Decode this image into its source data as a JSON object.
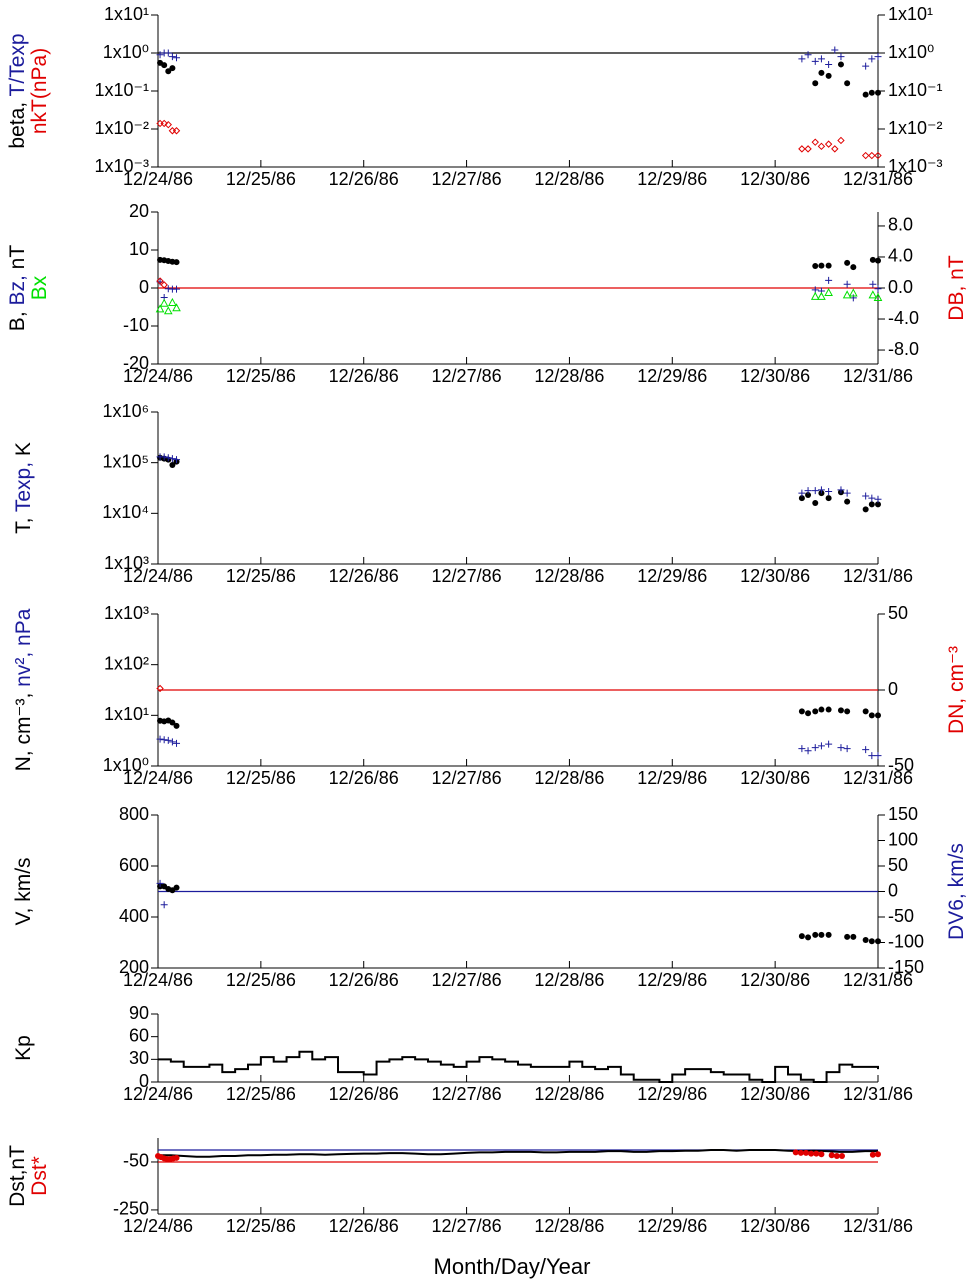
{
  "x_axis": {
    "xlim": [
      0,
      7
    ],
    "xticks": [
      {
        "value": 0,
        "label": "12/24/86"
      },
      {
        "value": 1,
        "label": "12/25/86"
      },
      {
        "value": 2,
        "label": "12/26/86"
      },
      {
        "value": 3,
        "label": "12/27/86"
      },
      {
        "value": 4,
        "label": "12/28/86"
      },
      {
        "value": 5,
        "label": "12/29/86"
      },
      {
        "value": 6,
        "label": "12/30/86"
      },
      {
        "value": 7,
        "label": "12/31/86"
      }
    ],
    "label": "Month/Day/Year"
  },
  "chart_data": [
    {
      "type": "scatter",
      "ylog": true,
      "ylim": [
        0.001,
        10
      ],
      "yticks": [
        {
          "value": 10,
          "label": "1x10¹"
        },
        {
          "value": 1,
          "label": "1x10⁰"
        },
        {
          "value": 0.1,
          "label": "1x10⁻¹"
        },
        {
          "value": 0.01,
          "label": "1x10⁻²"
        },
        {
          "value": 0.001,
          "label": "1x10⁻³"
        }
      ],
      "y2log": true,
      "y2lim": [
        0.001,
        10
      ],
      "y2ticks": [
        {
          "value": 10,
          "label": "1x10¹"
        },
        {
          "value": 1,
          "label": "1x10⁰"
        },
        {
          "value": 0.1,
          "label": "1x10⁻¹"
        },
        {
          "value": 0.01,
          "label": "1x10⁻²"
        },
        {
          "value": 0.001,
          "label": "1x10⁻³"
        }
      ],
      "ylabel": [
        [
          {
            "text": "beta, ",
            "color": "#000000"
          },
          {
            "text": "T/Texp",
            "color": "#1c1c9c"
          }
        ],
        [
          {
            "text": "nkT(nPa)",
            "color": "#e00000"
          }
        ]
      ],
      "hlines": [
        {
          "value": 1,
          "color": "#000000"
        }
      ],
      "series": [
        {
          "marker": "plus",
          "color": "#1c1c9c",
          "x": [
            0.02,
            0.06,
            0.1,
            0.14,
            0.18,
            6.26,
            6.32,
            6.39,
            6.45,
            6.52,
            6.58,
            6.64,
            6.88,
            6.94,
            7.0
          ],
          "values": [
            0.9,
            1.0,
            1.0,
            0.8,
            0.75,
            0.7,
            0.9,
            0.6,
            0.7,
            0.5,
            1.2,
            0.8,
            0.45,
            0.7,
            0.8
          ]
        },
        {
          "marker": "dot",
          "color": "#000000",
          "x": [
            0.02,
            0.06,
            0.1,
            0.14,
            6.39,
            6.45,
            6.52,
            6.64,
            6.7,
            6.88,
            6.94,
            7.0
          ],
          "values": [
            0.55,
            0.48,
            0.33,
            0.4,
            0.16,
            0.3,
            0.25,
            0.5,
            0.16,
            0.08,
            0.09,
            0.09
          ]
        },
        {
          "marker": "diamond",
          "color": "#e00000",
          "x": [
            0.02,
            0.06,
            0.1,
            0.14,
            0.18,
            6.26,
            6.32,
            6.39,
            6.45,
            6.52,
            6.58,
            6.64,
            6.88,
            6.94,
            7.0
          ],
          "values": [
            0.014,
            0.014,
            0.013,
            0.009,
            0.009,
            0.003,
            0.003,
            0.0045,
            0.0035,
            0.004,
            0.003,
            0.005,
            0.002,
            0.002,
            0.002
          ]
        }
      ]
    },
    {
      "type": "scatter",
      "ylim": [
        -20,
        20
      ],
      "yticks": [
        20,
        10,
        0,
        -10,
        -20
      ],
      "y2lim": [
        -9.8,
        9.8
      ],
      "y2ticks": [
        {
          "value": 8,
          "label": "8.0"
        },
        {
          "value": 4,
          "label": "4.0"
        },
        {
          "value": 0,
          "label": "0.0"
        },
        {
          "value": -4,
          "label": "-4.0"
        },
        {
          "value": -8,
          "label": "-8.0"
        }
      ],
      "ylabel": [
        [
          {
            "text": "B, ",
            "color": "#000000"
          },
          {
            "text": "Bz, ",
            "color": "#1c1c9c"
          },
          {
            "text": "nT",
            "color": "#000000"
          }
        ],
        [
          {
            "text": "Bx",
            "color": "#00e000"
          }
        ]
      ],
      "y2label": [
        [
          {
            "text": "DB, nT",
            "color": "#e00000"
          }
        ]
      ],
      "hlines": [
        {
          "value": 0,
          "color": "#e00000",
          "axis": "y2"
        }
      ],
      "series": [
        {
          "marker": "dot",
          "color": "#000000",
          "x": [
            0.02,
            0.06,
            0.1,
            0.14,
            0.18,
            6.39,
            6.45,
            6.52,
            6.7,
            6.76,
            6.95,
            7.0
          ],
          "values": [
            7.4,
            7.3,
            7.1,
            6.9,
            6.8,
            5.8,
            5.9,
            5.9,
            6.6,
            5.5,
            7.4,
            7.2
          ]
        },
        {
          "marker": "plus",
          "color": "#1c1c9c",
          "x": [
            0.02,
            0.06,
            0.1,
            0.14,
            0.18,
            6.39,
            6.45,
            6.52,
            6.7,
            6.76,
            6.95,
            7.0
          ],
          "values": [
            1.6,
            -2.5,
            -0.2,
            -0.3,
            -0.3,
            -0.5,
            -0.8,
            2,
            1,
            -2.6,
            1,
            -0.2
          ]
        },
        {
          "marker": "triangle",
          "color": "#00e000",
          "x": [
            0.02,
            0.06,
            0.1,
            0.14,
            0.18,
            6.39,
            6.45,
            6.52,
            6.7,
            6.76,
            6.95,
            7.0
          ],
          "values": [
            -5.5,
            -4,
            -6,
            -3.8,
            -5.2,
            -2.2,
            -2.2,
            -1.2,
            -1.8,
            -1.3,
            -1.8,
            -2.5
          ]
        },
        {
          "marker": "diamond",
          "color": "#e00000",
          "axis": "y2",
          "x": [
            0.02,
            0.06
          ],
          "values": [
            0.9,
            0.4
          ]
        }
      ]
    },
    {
      "type": "scatter",
      "ylog": true,
      "ylim": [
        1000,
        1000000
      ],
      "yticks": [
        {
          "value": 1000000,
          "label": "1x10⁶"
        },
        {
          "value": 100000,
          "label": "1x10⁵"
        },
        {
          "value": 10000,
          "label": "1x10⁴"
        },
        {
          "value": 1000,
          "label": "1x10³"
        }
      ],
      "ylabel": [
        [
          {
            "text": "T, ",
            "color": "#000000"
          },
          {
            "text": "Texp,",
            "color": "#1c1c9c"
          },
          {
            "text": " K",
            "color": "#000000"
          }
        ]
      ],
      "series": [
        {
          "marker": "dot",
          "color": "#000000",
          "x": [
            0.02,
            0.06,
            0.1,
            0.14,
            0.18,
            6.26,
            6.32,
            6.39,
            6.45,
            6.52,
            6.64,
            6.7,
            6.88,
            6.94,
            7.0
          ],
          "values": [
            125000,
            120000,
            115000,
            90000,
            105000,
            20000,
            23000,
            16000,
            25000,
            20000,
            26000,
            17000,
            12000,
            15000,
            15000
          ]
        },
        {
          "marker": "plus",
          "color": "#1c1c9c",
          "x": [
            0.02,
            0.06,
            0.1,
            0.14,
            0.18,
            6.26,
            6.32,
            6.39,
            6.45,
            6.52,
            6.64,
            6.7,
            6.88,
            6.94,
            7.0
          ],
          "values": [
            130000,
            130000,
            125000,
            120000,
            115000,
            25000,
            28000,
            28000,
            29000,
            27000,
            29000,
            25000,
            22000,
            20000,
            19000
          ]
        }
      ]
    },
    {
      "type": "scatter",
      "ylog": true,
      "ylim": [
        1,
        1000
      ],
      "yticks": [
        {
          "value": 1000,
          "label": "1x10³"
        },
        {
          "value": 100,
          "label": "1x10²"
        },
        {
          "value": 10,
          "label": "1x10¹"
        },
        {
          "value": 1,
          "label": "1x10⁰"
        }
      ],
      "y2lim": [
        -50,
        50
      ],
      "y2ticks": [
        50,
        0,
        -50
      ],
      "ylabel": [
        [
          {
            "text": "N, cm⁻³, ",
            "color": "#000000"
          },
          {
            "text": "nv², nPa",
            "color": "#1c1c9c"
          }
        ]
      ],
      "y2label": [
        [
          {
            "text": "DN, cm⁻³",
            "color": "#e00000"
          }
        ]
      ],
      "hlines": [
        {
          "value": 0,
          "color": "#e00000",
          "axis": "y2"
        }
      ],
      "series": [
        {
          "marker": "dot",
          "color": "#000000",
          "x": [
            0.02,
            0.06,
            0.1,
            0.14,
            0.18,
            6.26,
            6.32,
            6.39,
            6.45,
            6.52,
            6.64,
            6.7,
            6.88,
            6.94,
            7.0
          ],
          "values": [
            7.8,
            7.6,
            7.9,
            7.2,
            6.2,
            12,
            11,
            12,
            13,
            13,
            12.5,
            12,
            12,
            10,
            10
          ]
        },
        {
          "marker": "plus",
          "color": "#1c1c9c",
          "x": [
            0.02,
            0.06,
            0.1,
            0.14,
            0.18,
            6.26,
            6.32,
            6.39,
            6.45,
            6.52,
            6.64,
            6.7,
            6.88,
            6.94,
            7.0
          ],
          "values": [
            3.4,
            3.3,
            3.2,
            3,
            2.8,
            2.2,
            2.0,
            2.3,
            2.5,
            2.7,
            2.3,
            2.2,
            2.1,
            1.6,
            1.6
          ]
        },
        {
          "marker": "diamond",
          "color": "#e00000",
          "axis": "y2",
          "x": [
            0.02
          ],
          "values": [
            1
          ]
        }
      ]
    },
    {
      "type": "scatter",
      "ylim": [
        200,
        800
      ],
      "yticks": [
        800,
        600,
        400,
        200
      ],
      "y2lim": [
        -150,
        150
      ],
      "y2ticks": [
        150,
        100,
        50,
        0,
        -50,
        -100,
        -150
      ],
      "ylabel": [
        [
          {
            "text": "V, km/s",
            "color": "#000000"
          }
        ]
      ],
      "y2label": [
        [
          {
            "text": "DV6, km/s",
            "color": "#1c1c9c"
          }
        ]
      ],
      "hlines": [
        {
          "value": 0,
          "color": "#1c1c9c",
          "axis": "y2"
        }
      ],
      "series": [
        {
          "marker": "dot",
          "color": "#000000",
          "x": [
            0.02,
            0.06,
            0.1,
            0.14,
            0.18,
            6.26,
            6.32,
            6.39,
            6.45,
            6.52,
            6.7,
            6.76,
            6.88,
            6.94,
            7.0
          ],
          "values": [
            520,
            520,
            510,
            505,
            515,
            325,
            320,
            330,
            330,
            330,
            322,
            322,
            310,
            305,
            305
          ]
        },
        {
          "marker": "plus",
          "color": "#1c1c9c",
          "axis": "y2",
          "x": [
            0.02,
            0.06
          ],
          "values": [
            16,
            -26
          ]
        }
      ]
    },
    {
      "type": "step",
      "ylim": [
        0,
        90
      ],
      "yticks": [
        90,
        60,
        30,
        0
      ],
      "ylabel": [
        [
          {
            "text": "Kp",
            "color": "#000000"
          }
        ]
      ],
      "series": [
        {
          "marker": "step",
          "color": "#000000",
          "x": [
            0,
            0.125,
            0.25,
            0.375,
            0.5,
            0.625,
            0.75,
            0.875,
            1,
            1.125,
            1.25,
            1.375,
            1.5,
            1.625,
            1.75,
            1.875,
            2,
            2.125,
            2.25,
            2.375,
            2.5,
            2.625,
            2.75,
            2.875,
            3,
            3.125,
            3.25,
            3.375,
            3.5,
            3.625,
            3.75,
            3.875,
            4,
            4.125,
            4.25,
            4.375,
            4.5,
            4.625,
            4.75,
            4.875,
            5,
            5.125,
            5.25,
            5.375,
            5.5,
            5.625,
            5.75,
            5.875,
            6,
            6.125,
            6.25,
            6.375,
            6.5,
            6.625,
            6.75,
            6.875,
            7
          ],
          "values": [
            30,
            27,
            20,
            20,
            23,
            13,
            17,
            23,
            33,
            27,
            33,
            40,
            30,
            33,
            13,
            13,
            10,
            27,
            30,
            33,
            30,
            27,
            23,
            20,
            27,
            33,
            30,
            27,
            23,
            20,
            20,
            20,
            27,
            20,
            17,
            20,
            10,
            3,
            3,
            0,
            10,
            17,
            17,
            13,
            10,
            10,
            3,
            0,
            20,
            10,
            3,
            0,
            13,
            23,
            20,
            20,
            17
          ]
        }
      ]
    },
    {
      "type": "line",
      "ylim": [
        -267,
        50
      ],
      "yticks": [
        -50,
        -250
      ],
      "ylabel": [
        [
          {
            "text": "Dst,nT",
            "color": "#000000"
          }
        ],
        [
          {
            "text": "Dst*",
            "color": "#e00000"
          }
        ]
      ],
      "hlines": [
        {
          "value": 0,
          "color": "#1c1c9c"
        },
        {
          "value": -50,
          "color": "#e00000"
        }
      ],
      "series": [
        {
          "marker": "line",
          "color": "#000000",
          "x": [
            0,
            0.125,
            0.25,
            0.375,
            0.5,
            0.625,
            0.75,
            0.875,
            1,
            1.125,
            1.25,
            1.375,
            1.5,
            1.625,
            1.75,
            1.875,
            2,
            2.125,
            2.25,
            2.375,
            2.5,
            2.625,
            2.75,
            2.875,
            3,
            3.125,
            3.25,
            3.375,
            3.5,
            3.625,
            3.75,
            3.875,
            4,
            4.125,
            4.25,
            4.375,
            4.5,
            4.625,
            4.75,
            4.875,
            5,
            5.125,
            5.25,
            5.375,
            5.5,
            5.625,
            5.75,
            5.875,
            6,
            6.125,
            6.25,
            6.375,
            6.5,
            6.625,
            6.75,
            6.875,
            7
          ],
          "values": [
            -22,
            -22,
            -25,
            -28,
            -28,
            -25,
            -25,
            -22,
            -22,
            -20,
            -20,
            -18,
            -18,
            -20,
            -18,
            -16,
            -15,
            -15,
            -13,
            -13,
            -15,
            -18,
            -18,
            -15,
            -12,
            -10,
            -10,
            -8,
            -8,
            -8,
            -10,
            -10,
            -8,
            -8,
            -8,
            -5,
            -5,
            -8,
            -8,
            -5,
            -5,
            -3,
            -3,
            0,
            0,
            -3,
            0,
            0,
            0,
            -3,
            -5,
            -3,
            -5,
            -8,
            -8,
            -5,
            -5
          ]
        },
        {
          "marker": "dot",
          "color": "#e00000",
          "x": [
            0,
            0.03,
            0.06,
            0.09,
            0.12,
            0.15,
            0.18,
            6.2,
            6.25,
            6.3,
            6.35,
            6.4,
            6.45,
            6.55,
            6.6,
            6.65,
            6.95,
            7.0
          ],
          "values": [
            -25,
            -30,
            -35,
            -38,
            -38,
            -35,
            -33,
            -10,
            -12,
            -12,
            -15,
            -15,
            -18,
            -22,
            -25,
            -25,
            -20,
            -18
          ]
        }
      ]
    }
  ]
}
